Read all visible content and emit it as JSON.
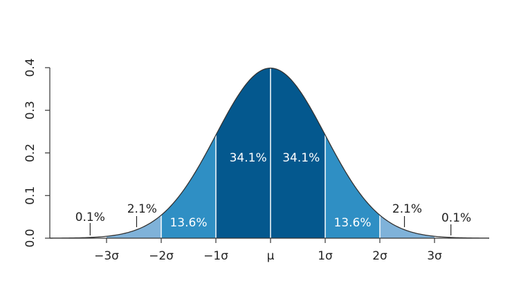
{
  "chart_data": {
    "type": "area",
    "title": "",
    "xlabel": "",
    "ylabel": "",
    "xlim": [
      -4,
      4
    ],
    "ylim": [
      0,
      0.4
    ],
    "distribution": "standard normal",
    "x_ticks": [
      {
        "value": -3,
        "label": "−3σ"
      },
      {
        "value": -2,
        "label": "−2σ"
      },
      {
        "value": -1,
        "label": "−1σ"
      },
      {
        "value": 0,
        "label": "μ"
      },
      {
        "value": 1,
        "label": "1σ"
      },
      {
        "value": 2,
        "label": "2σ"
      },
      {
        "value": 3,
        "label": "3σ"
      }
    ],
    "y_ticks": [
      {
        "value": 0.0,
        "label": "0.0"
      },
      {
        "value": 0.1,
        "label": "0.1"
      },
      {
        "value": 0.2,
        "label": "0.2"
      },
      {
        "value": 0.3,
        "label": "0.3"
      },
      {
        "value": 0.4,
        "label": "0.4"
      }
    ],
    "regions": [
      {
        "from": -3,
        "to": -2,
        "percent": "2.1%",
        "color": "#7fb2d9"
      },
      {
        "from": -2,
        "to": -1,
        "percent": "13.6%",
        "color": "#2f8fc4"
      },
      {
        "from": -1,
        "to": 0,
        "percent": "34.1%",
        "color": "#04588e"
      },
      {
        "from": 0,
        "to": 1,
        "percent": "34.1%",
        "color": "#04588e"
      },
      {
        "from": 1,
        "to": 2,
        "percent": "13.6%",
        "color": "#2f8fc4"
      },
      {
        "from": 2,
        "to": 3,
        "percent": "2.1%",
        "color": "#7fb2d9"
      }
    ],
    "tail_labels": [
      {
        "side": "left",
        "percent": "0.1%"
      },
      {
        "side": "right",
        "percent": "0.1%"
      }
    ],
    "colors": {
      "curve": "#333333",
      "axis": "#333333",
      "divider": "#ffffff"
    }
  }
}
